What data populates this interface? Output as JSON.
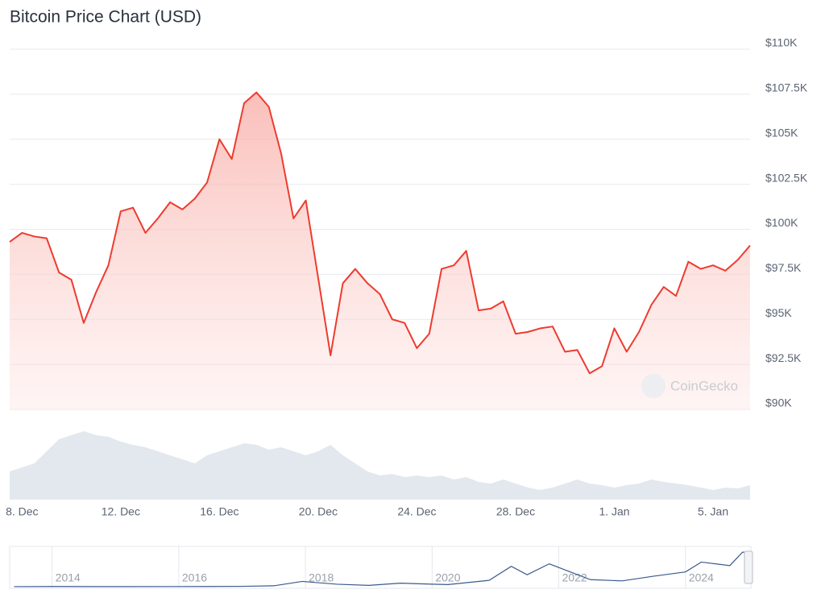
{
  "chart_data": {
    "type": "line",
    "title": "Bitcoin Price Chart (USD)",
    "watermark": "CoinGecko",
    "categories": [
      null,
      "8. Dec",
      null,
      null,
      null,
      null,
      null,
      null,
      null,
      "12. Dec",
      null,
      null,
      null,
      null,
      null,
      null,
      null,
      "16. Dec",
      null,
      null,
      null,
      null,
      null,
      null,
      null,
      "20. Dec",
      null,
      null,
      null,
      null,
      null,
      null,
      null,
      "24. Dec",
      null,
      null,
      null,
      null,
      null,
      null,
      null,
      "28. Dec",
      null,
      null,
      null,
      null,
      null,
      null,
      null,
      "1. Jan",
      null,
      null,
      null,
      null,
      null,
      null,
      null,
      "5. Jan",
      null,
      null,
      null
    ],
    "values": [
      99300,
      99800,
      99600,
      99500,
      97600,
      97200,
      94800,
      96500,
      98000,
      101000,
      101200,
      99800,
      100600,
      101500,
      101100,
      101700,
      102600,
      105000,
      103900,
      107000,
      107600,
      106800,
      104200,
      100600,
      101600,
      97300,
      93000,
      97000,
      97800,
      97000,
      96400,
      95000,
      94800,
      93400,
      94200,
      97800,
      98000,
      98800,
      95500,
      95600,
      96000,
      94200,
      94300,
      94500,
      94600,
      93200,
      93300,
      92000,
      92400,
      94500,
      93200,
      94300,
      95800,
      96800,
      96300,
      98200,
      97800,
      98000,
      97700,
      98300,
      99100
    ],
    "color": "#ee3b2f",
    "ylim": [
      90000,
      110000
    ],
    "yticks": [
      {
        "value": 90000,
        "label": "$90K"
      },
      {
        "value": 92500,
        "label": "$92.5K"
      },
      {
        "value": 95000,
        "label": "$95K"
      },
      {
        "value": 97500,
        "label": "$97.5K"
      },
      {
        "value": 100000,
        "label": "$100K"
      },
      {
        "value": 102500,
        "label": "$102.5K"
      },
      {
        "value": 105000,
        "label": "$105K"
      },
      {
        "value": 107500,
        "label": "$107.5K"
      },
      {
        "value": 110000,
        "label": "$110K"
      }
    ],
    "grid": true,
    "volume": [
      35,
      40,
      45,
      60,
      75,
      80,
      85,
      80,
      78,
      72,
      68,
      65,
      60,
      55,
      50,
      45,
      55,
      60,
      65,
      70,
      68,
      62,
      65,
      60,
      55,
      60,
      68,
      55,
      45,
      35,
      30,
      32,
      28,
      30,
      28,
      30,
      25,
      28,
      22,
      20,
      25,
      20,
      15,
      12,
      15,
      20,
      25,
      20,
      18,
      15,
      18,
      20,
      25,
      22,
      20,
      18,
      15,
      12,
      15,
      14,
      18
    ],
    "volume_ylim": [
      0,
      100
    ],
    "volume_color": "#e3e7ee",
    "navigator": {
      "x": [
        2013.4,
        2014,
        2015,
        2016,
        2017,
        2017.5,
        2017.95,
        2018.5,
        2019,
        2019.5,
        2020,
        2020.25,
        2020.9,
        2021.25,
        2021.5,
        2021.85,
        2022.5,
        2023,
        2023.5,
        2024,
        2024.25,
        2024.7,
        2024.9,
        2025.0
      ],
      "values": [
        100,
        600,
        300,
        400,
        1000,
        2500,
        15000,
        7000,
        3800,
        10000,
        7200,
        6000,
        18000,
        58000,
        34000,
        65000,
        20000,
        16500,
        30000,
        42000,
        70000,
        60000,
        98000,
        99000
      ],
      "xlim": [
        2013.33,
        2025.02
      ],
      "xticks": [
        2014,
        2016,
        2018,
        2020,
        2022,
        2024
      ],
      "ylim": [
        0,
        110000
      ],
      "color": "#3b5a8f"
    }
  }
}
